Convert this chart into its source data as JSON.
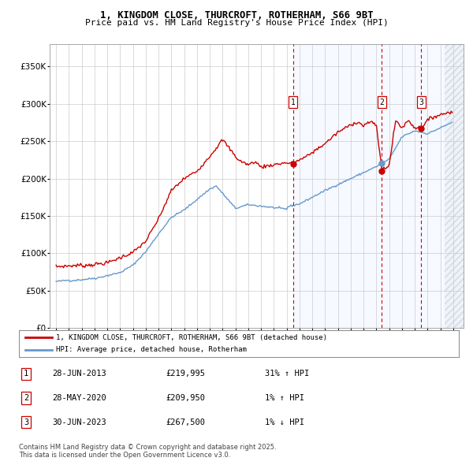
{
  "title1": "1, KINGDOM CLOSE, THURCROFT, ROTHERHAM, S66 9BT",
  "title2": "Price paid vs. HM Land Registry's House Price Index (HPI)",
  "ylim": [
    0,
    380000
  ],
  "xlim_start": 1994.5,
  "xlim_end": 2026.8,
  "sale1_date": 2013.49,
  "sale1_price": 219995,
  "sale2_date": 2020.41,
  "sale2_price": 209950,
  "sale3_date": 2023.49,
  "sale3_price": 267500,
  "legend_line1": "1, KINGDOM CLOSE, THURCROFT, ROTHERHAM, S66 9BT (detached house)",
  "legend_line2": "HPI: Average price, detached house, Rotherham",
  "footer1": "Contains HM Land Registry data © Crown copyright and database right 2025.",
  "footer2": "This data is licensed under the Open Government Licence v3.0.",
  "table": [
    {
      "num": "1",
      "date": "28-JUN-2013",
      "price": "£219,995",
      "change": "31% ↑ HPI"
    },
    {
      "num": "2",
      "date": "28-MAY-2020",
      "price": "£209,950",
      "change": "1% ↑ HPI"
    },
    {
      "num": "3",
      "date": "30-JUN-2023",
      "price": "£267,500",
      "change": "1% ↓ HPI"
    }
  ],
  "red_color": "#cc0000",
  "blue_color": "#6699cc",
  "shade_start": 2013.49,
  "hatch_start": 2025.3,
  "yticks": [
    0,
    50000,
    100000,
    150000,
    200000,
    250000,
    300000,
    350000
  ],
  "ylabels": [
    "£0",
    "£50K",
    "£100K",
    "£150K",
    "£200K",
    "£250K",
    "£300K",
    "£350K"
  ]
}
